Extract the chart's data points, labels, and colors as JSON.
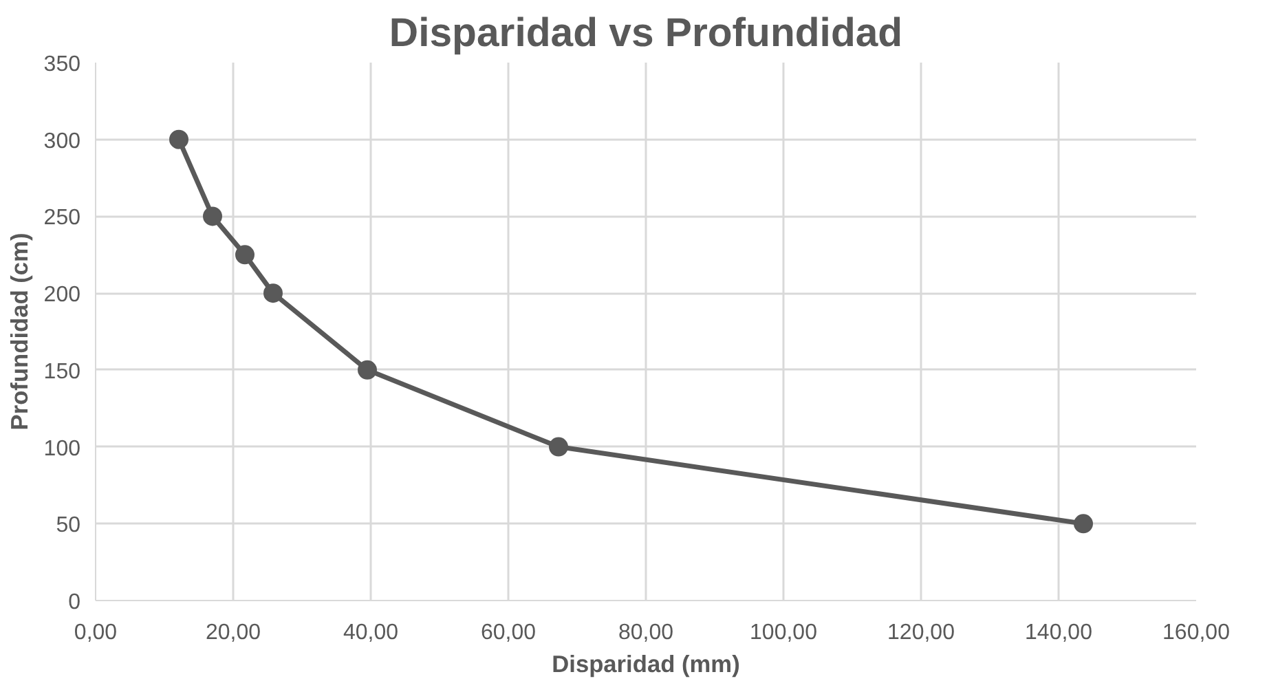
{
  "chart_data": {
    "type": "line",
    "title": "Disparidad vs Profundidad",
    "xlabel": "Disparidad (mm)",
    "ylabel": "Profundidad (cm)",
    "x": [
      12.1,
      17.0,
      21.7,
      25.8,
      39.5,
      67.3,
      143.6
    ],
    "series": [
      {
        "color": "#595959",
        "values": [
          300,
          250,
          225,
          200,
          150,
          100,
          50
        ]
      }
    ],
    "xlim": [
      0,
      160
    ],
    "xticks": [
      {
        "value": 0,
        "label": "0,00"
      },
      {
        "value": 20,
        "label": "20,00"
      },
      {
        "value": 40,
        "label": "40,00"
      },
      {
        "value": 60,
        "label": "60,00"
      },
      {
        "value": 80,
        "label": "80,00"
      },
      {
        "value": 100,
        "label": "100,00"
      },
      {
        "value": 120,
        "label": "120,00"
      },
      {
        "value": 140,
        "label": "140,00"
      },
      {
        "value": 160,
        "label": "160,00"
      }
    ],
    "ylim": [
      0,
      350
    ],
    "yticks": [
      0,
      50,
      100,
      150,
      200,
      250,
      300,
      350
    ],
    "grid": true,
    "marker": "circle",
    "line_style": "solid"
  }
}
